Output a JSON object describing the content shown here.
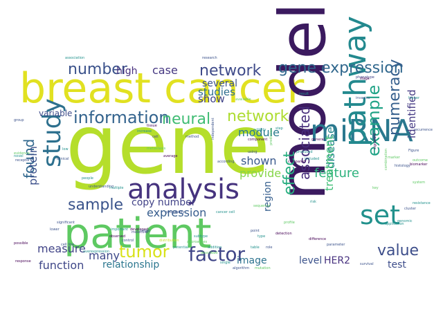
{
  "cloud": {
    "background": "#ffffff",
    "palette": {
      "lime": "#c8df2a",
      "yellow": "#e6e01c",
      "green": "#5ec962",
      "teal": "#21918c",
      "blue": "#3b528b",
      "navy": "#414487",
      "purple": "#440154",
      "cyan": "#2a9a8f"
    },
    "words": [
      {
        "text": "gene",
        "color": "#b5de2b"
      },
      {
        "text": "breast cancer",
        "color": "#e1e121"
      },
      {
        "text": "model",
        "color": "#3b1a5f"
      },
      {
        "text": "patient",
        "color": "#5ec962"
      },
      {
        "text": "miRNA",
        "color": "#2a788e"
      },
      {
        "text": "analysis",
        "color": "#46337e"
      },
      {
        "text": "pathway",
        "color": "#23898e"
      },
      {
        "text": "set",
        "color": "#21918c"
      },
      {
        "text": "study",
        "color": "#2d708e"
      },
      {
        "text": "network",
        "color": "#3e4a89"
      },
      {
        "text": "network",
        "color": "#addc30"
      },
      {
        "text": "gene expression",
        "color": "#30678d"
      },
      {
        "text": "number",
        "color": "#3b528b"
      },
      {
        "text": "information",
        "color": "#33638d"
      },
      {
        "text": "neural",
        "color": "#3fbc73"
      },
      {
        "text": "sample",
        "color": "#3a538b"
      },
      {
        "text": "tumor",
        "color": "#d8e219"
      },
      {
        "text": "factor",
        "color": "#404688"
      },
      {
        "text": "numeracy",
        "color": "#355f8d"
      },
      {
        "text": "example",
        "color": "#20a386"
      },
      {
        "text": "effect",
        "color": "#28ae80"
      },
      {
        "text": "associated",
        "color": "#472d7b"
      },
      {
        "text": "feature",
        "color": "#2db27d"
      },
      {
        "text": "value",
        "color": "#3d4e8a"
      },
      {
        "text": "found",
        "color": "#31688e"
      },
      {
        "text": "protein",
        "color": "#3c508b"
      },
      {
        "text": "copy number",
        "color": "#414287"
      },
      {
        "text": "expression",
        "color": "#365c8d"
      },
      {
        "text": "disease",
        "color": "#24868e"
      },
      {
        "text": "identified",
        "color": "#443983"
      },
      {
        "text": "treatment",
        "color": "#3dbc74"
      },
      {
        "text": "module",
        "color": "#297b8e"
      },
      {
        "text": "show",
        "color": "#404387"
      },
      {
        "text": "studies",
        "color": "#2e6e8e"
      },
      {
        "text": "several",
        "color": "#3b528b"
      },
      {
        "text": "case",
        "color": "#453781"
      },
      {
        "text": "high",
        "color": "#472f7d"
      },
      {
        "text": "provide",
        "color": "#86d549"
      },
      {
        "text": "shown",
        "color": "#38588c"
      },
      {
        "text": "region",
        "color": "#355e8d"
      },
      {
        "text": "measure",
        "color": "#414487"
      },
      {
        "text": "many",
        "color": "#3e4989"
      },
      {
        "text": "function",
        "color": "#3f4788"
      },
      {
        "text": "relationship",
        "color": "#2a768e"
      },
      {
        "text": "level",
        "color": "#3b528b"
      },
      {
        "text": "HER2",
        "color": "#46307e"
      },
      {
        "text": "test",
        "color": "#3d4d8a"
      },
      {
        "text": "image",
        "color": "#2c728e"
      },
      {
        "text": "variable",
        "color": "#3e4c8a"
      },
      {
        "text": "approaches",
        "color": "#5ec962"
      },
      {
        "text": "cell line",
        "color": "#3b528b"
      },
      {
        "text": "cancer cell",
        "color": "#21918c"
      },
      {
        "text": "observed",
        "color": "#440154"
      },
      {
        "text": "metastasis",
        "color": "#5ec962"
      },
      {
        "text": "research",
        "color": "#3b528b"
      },
      {
        "text": "association",
        "color": "#21918c"
      },
      {
        "text": "distribution",
        "color": "#c8df2a"
      },
      {
        "text": "probability",
        "color": "#3b528b"
      },
      {
        "text": "developed",
        "color": "#440154"
      },
      {
        "text": "subtype",
        "color": "#21918c"
      },
      {
        "text": "molecular",
        "color": "#414487"
      },
      {
        "text": "combination",
        "color": "#5ec962"
      },
      {
        "text": "independent",
        "color": "#3b528b"
      },
      {
        "text": "potential",
        "color": "#21918c"
      },
      {
        "text": "signature",
        "color": "#440154"
      },
      {
        "text": "prediction",
        "color": "#5ec962"
      },
      {
        "text": "application",
        "color": "#21918c"
      },
      {
        "text": "cluster",
        "color": "#3b528b"
      },
      {
        "text": "compared",
        "color": "#440154"
      },
      {
        "text": "single",
        "color": "#21918c"
      },
      {
        "text": "algorithm",
        "color": "#3b528b"
      },
      {
        "text": "mutation",
        "color": "#5ec962"
      },
      {
        "text": "genomic",
        "color": "#21918c"
      },
      {
        "text": "clinical",
        "color": "#3b528b"
      },
      {
        "text": "response",
        "color": "#440154"
      },
      {
        "text": "overexpression",
        "color": "#21918c"
      },
      {
        "text": "receptor",
        "color": "#3b528b"
      },
      {
        "text": "sequence",
        "color": "#5ec962"
      },
      {
        "text": "phenotype",
        "color": "#414487"
      },
      {
        "text": "activity",
        "color": "#21918c"
      },
      {
        "text": "detection",
        "color": "#440154"
      },
      {
        "text": "significant",
        "color": "#3b528b"
      },
      {
        "text": "included",
        "color": "#21918c"
      },
      {
        "text": "cell",
        "color": "#414487"
      },
      {
        "text": "evidence",
        "color": "#5ec962"
      },
      {
        "text": "understanding",
        "color": "#3b528b"
      },
      {
        "text": "increase",
        "color": "#21918c"
      },
      {
        "text": "component",
        "color": "#440154"
      },
      {
        "text": "target",
        "color": "#3b528b"
      },
      {
        "text": "produced",
        "color": "#21918c"
      },
      {
        "text": "available",
        "color": "#5ec962"
      },
      {
        "text": "according",
        "color": "#3b528b"
      },
      {
        "text": "addition",
        "color": "#21918c"
      },
      {
        "text": "difference",
        "color": "#440154"
      },
      {
        "text": "control",
        "color": "#3b528b"
      },
      {
        "text": "people",
        "color": "#21918c"
      },
      {
        "text": "system",
        "color": "#5ec962"
      },
      {
        "text": "parameter",
        "color": "#3b528b"
      },
      {
        "text": "table",
        "color": "#21918c"
      },
      {
        "text": "average",
        "color": "#440154"
      },
      {
        "text": "recurrence",
        "color": "#3b528b"
      },
      {
        "text": "low",
        "color": "#21918c"
      },
      {
        "text": "marker",
        "color": "#5ec962"
      },
      {
        "text": "group",
        "color": "#3b528b"
      },
      {
        "text": "multiple",
        "color": "#21918c"
      },
      {
        "text": "biomarker",
        "color": "#440154"
      },
      {
        "text": "histology",
        "color": "#3b528b"
      },
      {
        "text": "important",
        "color": "#21918c"
      },
      {
        "text": "described",
        "color": "#5ec962"
      },
      {
        "text": "method",
        "color": "#3b528b"
      },
      {
        "text": "novel",
        "color": "#21918c"
      },
      {
        "text": "stage",
        "color": "#440154"
      },
      {
        "text": "using",
        "color": "#3b528b"
      },
      {
        "text": "risk",
        "color": "#21918c"
      },
      {
        "text": "outcome",
        "color": "#5ec962"
      },
      {
        "text": "lower",
        "color": "#3b528b"
      },
      {
        "text": "higher",
        "color": "#21918c"
      },
      {
        "text": "possible",
        "color": "#440154"
      },
      {
        "text": "invasive",
        "color": "#3b528b"
      },
      {
        "text": "resistance",
        "color": "#21918c"
      },
      {
        "text": "profile",
        "color": "#5ec962"
      },
      {
        "text": "survival",
        "color": "#3b528b"
      },
      {
        "text": "type",
        "color": "#21918c"
      },
      {
        "text": "tissue",
        "color": "#440154"
      },
      {
        "text": "role",
        "color": "#3b528b"
      },
      {
        "text": "step",
        "color": "#21918c"
      },
      {
        "text": "key",
        "color": "#5ec962"
      },
      {
        "text": "Figure",
        "color": "#3b528b"
      },
      {
        "text": "result",
        "color": "#21918c"
      },
      {
        "text": "general",
        "color": "#440154"
      },
      {
        "text": "point",
        "color": "#3b528b"
      }
    ]
  }
}
